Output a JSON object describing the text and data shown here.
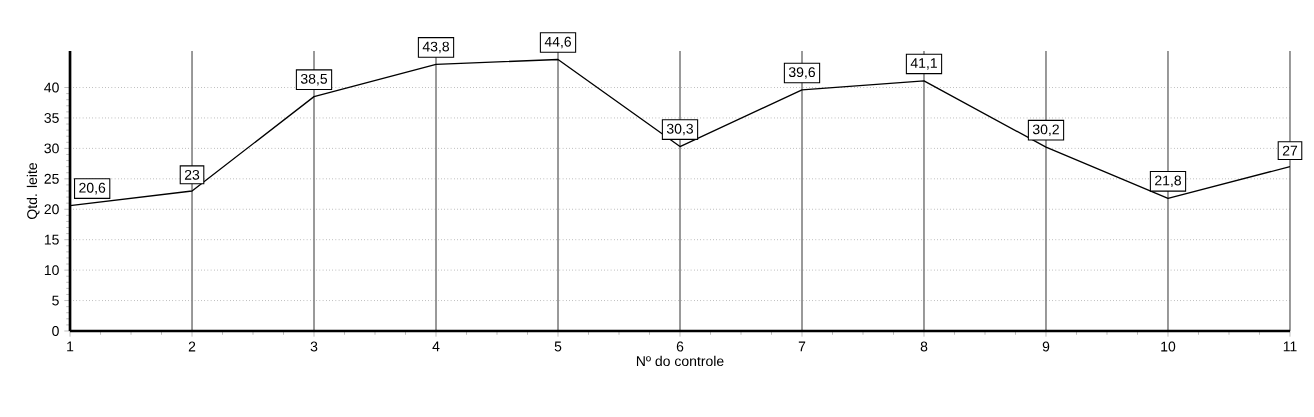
{
  "chart_data": {
    "type": "line",
    "xlabel": "Nº do controle",
    "ylabel": "Qtd. leite",
    "x": [
      1,
      2,
      3,
      4,
      5,
      6,
      7,
      8,
      9,
      10,
      11
    ],
    "values": [
      20.6,
      23,
      38.5,
      43.8,
      44.6,
      30.3,
      39.6,
      41.1,
      30.2,
      21.8,
      27
    ],
    "value_labels": [
      "20,6",
      "23",
      "38,5",
      "43,8",
      "44,6",
      "30,3",
      "39,6",
      "41,1",
      "30,2",
      "21,8",
      "27"
    ],
    "color": "#000000",
    "xlim": [
      1,
      11
    ],
    "xticks": [
      1,
      2,
      3,
      4,
      5,
      6,
      7,
      8,
      9,
      10,
      11
    ],
    "ylim": [
      0,
      46
    ],
    "yticks": [
      0,
      5,
      10,
      15,
      20,
      25,
      30,
      35,
      40
    ],
    "grid": true,
    "marker": "none",
    "line_style": "solid"
  }
}
